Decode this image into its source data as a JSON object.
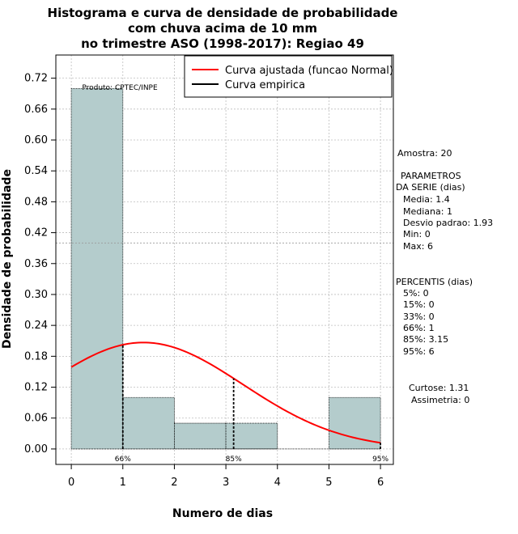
{
  "chart_data": {
    "type": "bar",
    "title_lines": [
      "Histograma e curva de densidade de probabilidade",
      "com chuva acima de 10 mm",
      "no trimestre ASO (1998-2017): Regiao 49"
    ],
    "xlabel": "Numero de dias",
    "ylabel": "Densidade de probabilidade",
    "xlim": [
      -0.3,
      6.25
    ],
    "ylim": [
      -0.03,
      0.765
    ],
    "x_ticks": [
      "0",
      "1",
      "2",
      "3",
      "4",
      "5",
      "6"
    ],
    "y_ticks": [
      "0.00",
      "0.06",
      "0.12",
      "0.18",
      "0.24",
      "0.30",
      "0.36",
      "0.42",
      "0.48",
      "0.54",
      "0.60",
      "0.66",
      "0.72"
    ],
    "grid": true,
    "hline": 0.4,
    "bins": [
      {
        "start": 0,
        "end": 1,
        "density": 0.7
      },
      {
        "start": 1,
        "end": 2,
        "density": 0.1
      },
      {
        "start": 2,
        "end": 3,
        "density": 0.05
      },
      {
        "start": 3,
        "end": 4,
        "density": 0.05
      },
      {
        "start": 4,
        "end": 5,
        "density": 0.0
      },
      {
        "start": 5,
        "end": 6,
        "density": 0.1
      }
    ],
    "bar_color": "#b4cccc",
    "fitted_curve": {
      "name": "Curva ajustada (funcao Normal)",
      "color": "#ff0000",
      "mean": 1.4,
      "sd": 1.93,
      "x_from": 0,
      "x_to": 6
    },
    "empirical_curve_name": "Curva empirica",
    "percentile_markers": [
      {
        "x": 1,
        "label": "66%"
      },
      {
        "x": 3.15,
        "label": "85%"
      },
      {
        "x": 6,
        "label": "95%"
      }
    ],
    "product_label": "Produto: CPTEC/INPE",
    "legend_position": "top-right"
  },
  "side_panel": {
    "sample": "Amostra: 20",
    "params_title_1": "PARAMETROS",
    "params_title_2": "DA SERIE (dias)",
    "media": "Media: 1.4",
    "mediana": "Mediana: 1",
    "desvio": "Desvio padrao: 1.93",
    "min": "Min: 0",
    "max": "Max: 6",
    "percentis_title": "PERCENTIS (dias)",
    "p5": "5%: 0",
    "p15": "15%: 0",
    "p33": "33%: 0",
    "p66": "66%: 1",
    "p85": "85%: 3.15",
    "p95": "95%: 6",
    "curtose": "Curtose: 1.31",
    "assimetria": "Assimetria: 0"
  }
}
